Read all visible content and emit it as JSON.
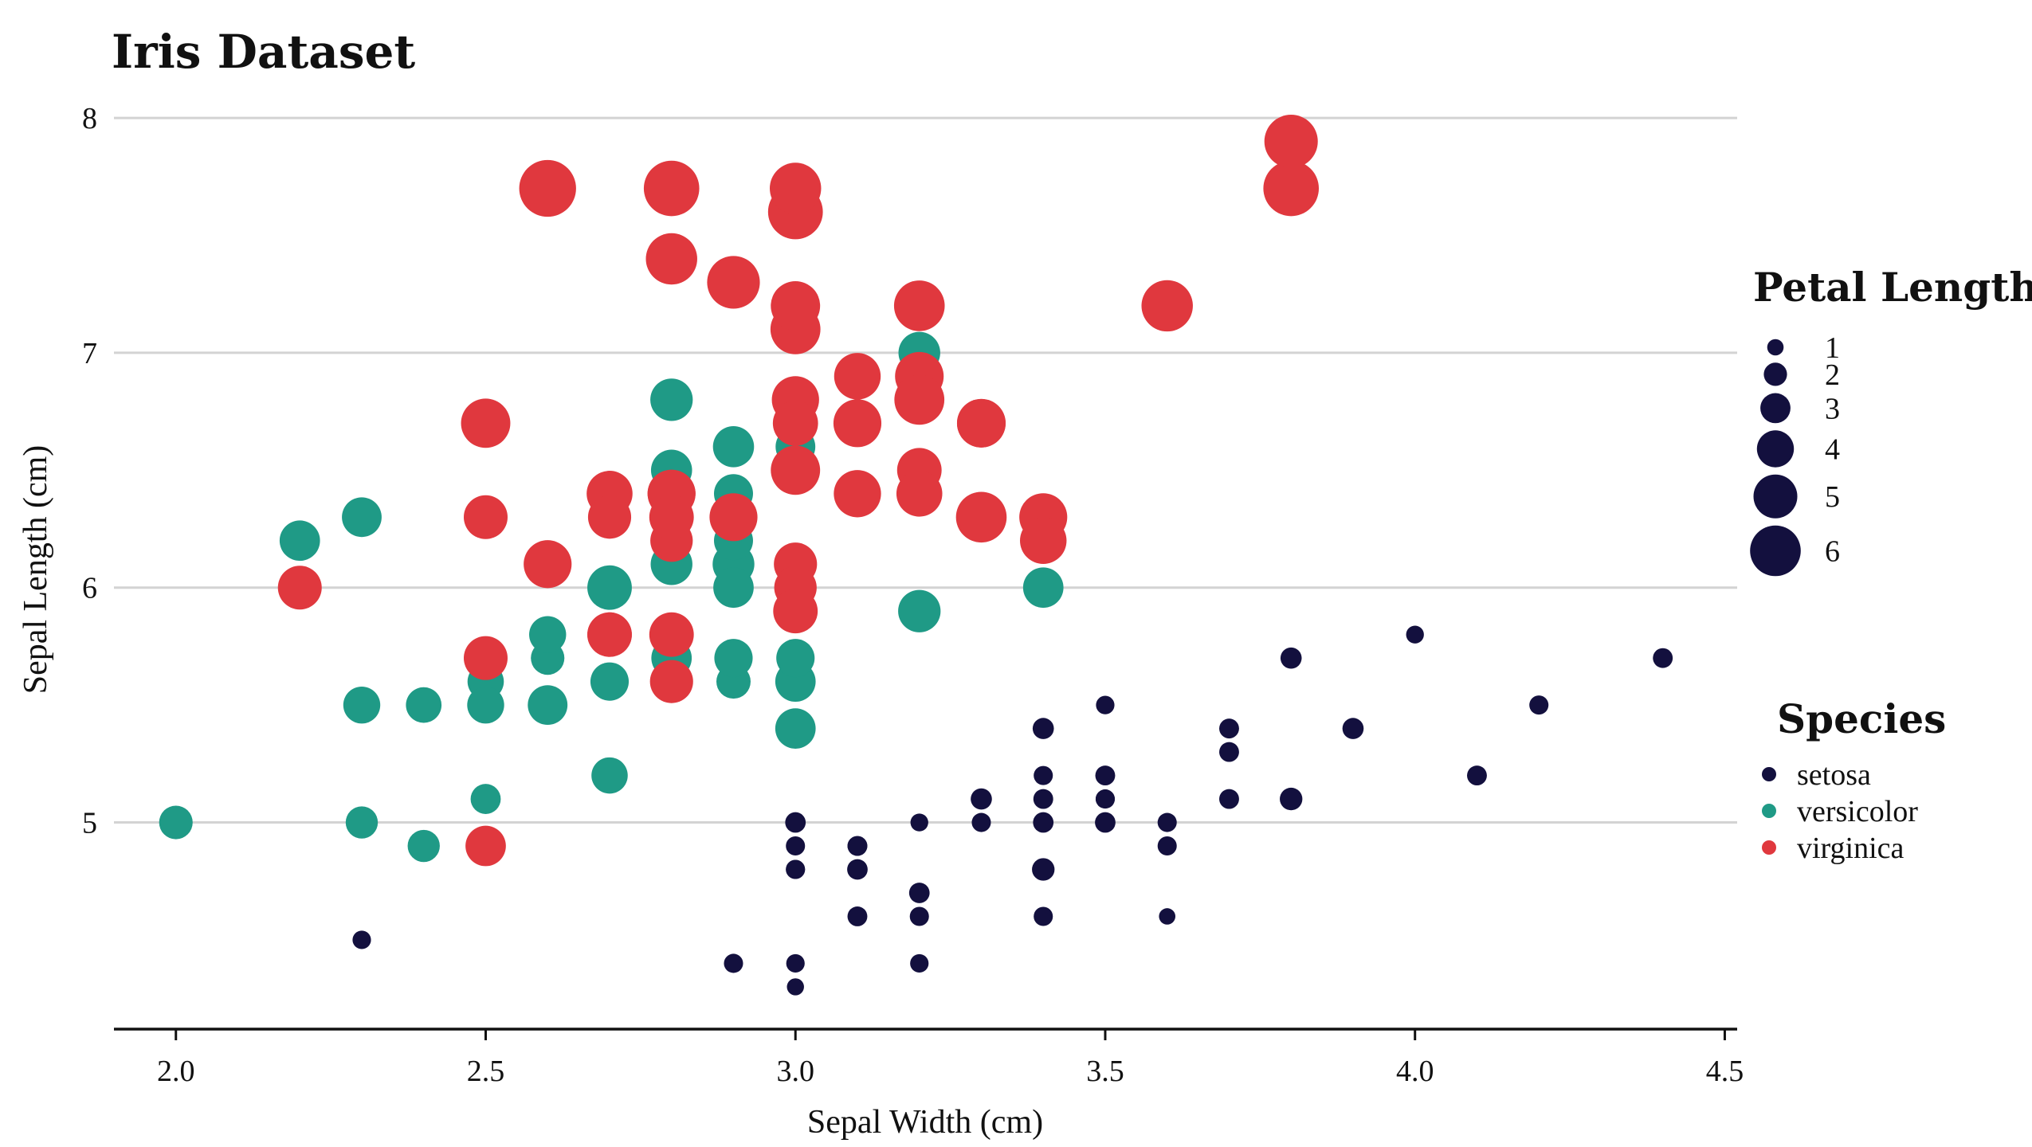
{
  "chart_data": {
    "type": "scatter",
    "title": "Iris Dataset",
    "xlabel": "Sepal Width (cm)",
    "ylabel": "Sepal Length (cm)",
    "xlim": [
      1.9,
      4.52
    ],
    "ylim": [
      4.12,
      8.18
    ],
    "xticks": [
      2.0,
      2.5,
      3.0,
      3.5,
      4.0,
      4.5
    ],
    "xtick_labels": [
      "2.0",
      "2.5",
      "3.0",
      "3.5",
      "4.0",
      "4.5"
    ],
    "yticks": [
      5,
      6,
      7,
      8
    ],
    "ytick_labels": [
      "5",
      "6",
      "7",
      "8"
    ],
    "grid": "horizontal",
    "size_encoding": "Petal Length",
    "size_legend": {
      "title": "Petal Length",
      "values": [
        1,
        2,
        3,
        4,
        5,
        6
      ],
      "labels": [
        "1",
        "2",
        "3",
        "4",
        "5",
        "6"
      ]
    },
    "legend": {
      "title": "Species",
      "placement": "right",
      "entries": [
        "setosa",
        "versicolor",
        "virginica"
      ]
    },
    "colors": {
      "setosa": "#13103e",
      "versicolor": "#1f9a86",
      "virginica": "#e0383e"
    },
    "series": [
      {
        "name": "setosa",
        "points": [
          {
            "x": 3.5,
            "y": 5.1,
            "p": 1.4
          },
          {
            "x": 3.0,
            "y": 4.9,
            "p": 1.4
          },
          {
            "x": 3.2,
            "y": 4.7,
            "p": 1.3
          },
          {
            "x": 3.1,
            "y": 4.6,
            "p": 1.5
          },
          {
            "x": 3.6,
            "y": 5.0,
            "p": 1.4
          },
          {
            "x": 3.9,
            "y": 5.4,
            "p": 1.7
          },
          {
            "x": 3.4,
            "y": 4.6,
            "p": 1.4
          },
          {
            "x": 3.4,
            "y": 5.0,
            "p": 1.5
          },
          {
            "x": 2.9,
            "y": 4.4,
            "p": 1.4
          },
          {
            "x": 3.1,
            "y": 4.9,
            "p": 1.5
          },
          {
            "x": 3.7,
            "y": 5.4,
            "p": 1.5
          },
          {
            "x": 3.4,
            "y": 4.8,
            "p": 1.6
          },
          {
            "x": 3.0,
            "y": 4.8,
            "p": 1.4
          },
          {
            "x": 3.0,
            "y": 4.3,
            "p": 1.1
          },
          {
            "x": 4.0,
            "y": 5.8,
            "p": 1.2
          },
          {
            "x": 4.4,
            "y": 5.7,
            "p": 1.5
          },
          {
            "x": 3.9,
            "y": 5.4,
            "p": 1.3
          },
          {
            "x": 3.5,
            "y": 5.1,
            "p": 1.4
          },
          {
            "x": 3.8,
            "y": 5.7,
            "p": 1.7
          },
          {
            "x": 3.8,
            "y": 5.1,
            "p": 1.5
          },
          {
            "x": 3.4,
            "y": 5.4,
            "p": 1.7
          },
          {
            "x": 3.7,
            "y": 5.1,
            "p": 1.5
          },
          {
            "x": 3.6,
            "y": 4.6,
            "p": 1.0
          },
          {
            "x": 3.3,
            "y": 5.1,
            "p": 1.7
          },
          {
            "x": 3.4,
            "y": 4.8,
            "p": 1.9
          },
          {
            "x": 3.0,
            "y": 5.0,
            "p": 1.6
          },
          {
            "x": 3.4,
            "y": 5.0,
            "p": 1.6
          },
          {
            "x": 3.5,
            "y": 5.2,
            "p": 1.5
          },
          {
            "x": 3.4,
            "y": 5.2,
            "p": 1.4
          },
          {
            "x": 3.2,
            "y": 4.7,
            "p": 1.6
          },
          {
            "x": 3.1,
            "y": 4.8,
            "p": 1.6
          },
          {
            "x": 3.4,
            "y": 5.4,
            "p": 1.5
          },
          {
            "x": 4.1,
            "y": 5.2,
            "p": 1.5
          },
          {
            "x": 4.2,
            "y": 5.5,
            "p": 1.4
          },
          {
            "x": 3.1,
            "y": 4.9,
            "p": 1.5
          },
          {
            "x": 3.2,
            "y": 5.0,
            "p": 1.2
          },
          {
            "x": 3.5,
            "y": 5.5,
            "p": 1.3
          },
          {
            "x": 3.6,
            "y": 4.9,
            "p": 1.4
          },
          {
            "x": 3.0,
            "y": 4.4,
            "p": 1.3
          },
          {
            "x": 3.4,
            "y": 5.1,
            "p": 1.5
          },
          {
            "x": 3.5,
            "y": 5.0,
            "p": 1.3
          },
          {
            "x": 2.3,
            "y": 4.5,
            "p": 1.3
          },
          {
            "x": 3.2,
            "y": 4.4,
            "p": 1.3
          },
          {
            "x": 3.5,
            "y": 5.0,
            "p": 1.6
          },
          {
            "x": 3.8,
            "y": 5.1,
            "p": 1.9
          },
          {
            "x": 3.0,
            "y": 4.8,
            "p": 1.4
          },
          {
            "x": 3.8,
            "y": 5.1,
            "p": 1.6
          },
          {
            "x": 3.2,
            "y": 4.6,
            "p": 1.4
          },
          {
            "x": 3.7,
            "y": 5.3,
            "p": 1.5
          },
          {
            "x": 3.3,
            "y": 5.0,
            "p": 1.4
          }
        ]
      },
      {
        "name": "versicolor",
        "points": [
          {
            "x": 3.2,
            "y": 7.0,
            "p": 4.7
          },
          {
            "x": 3.2,
            "y": 6.4,
            "p": 4.5
          },
          {
            "x": 3.1,
            "y": 6.9,
            "p": 4.9
          },
          {
            "x": 2.3,
            "y": 5.5,
            "p": 4.0
          },
          {
            "x": 2.8,
            "y": 6.5,
            "p": 4.6
          },
          {
            "x": 2.8,
            "y": 5.7,
            "p": 4.5
          },
          {
            "x": 3.3,
            "y": 6.3,
            "p": 4.7
          },
          {
            "x": 2.4,
            "y": 4.9,
            "p": 3.3
          },
          {
            "x": 2.9,
            "y": 6.6,
            "p": 4.6
          },
          {
            "x": 2.7,
            "y": 5.2,
            "p": 3.9
          },
          {
            "x": 2.0,
            "y": 5.0,
            "p": 3.5
          },
          {
            "x": 3.0,
            "y": 5.9,
            "p": 4.2
          },
          {
            "x": 2.2,
            "y": 6.0,
            "p": 4.0
          },
          {
            "x": 2.9,
            "y": 6.1,
            "p": 4.7
          },
          {
            "x": 2.9,
            "y": 5.6,
            "p": 3.6
          },
          {
            "x": 3.1,
            "y": 6.7,
            "p": 4.4
          },
          {
            "x": 3.0,
            "y": 5.6,
            "p": 4.5
          },
          {
            "x": 2.7,
            "y": 5.8,
            "p": 4.1
          },
          {
            "x": 2.2,
            "y": 6.2,
            "p": 4.5
          },
          {
            "x": 2.5,
            "y": 5.6,
            "p": 3.9
          },
          {
            "x": 3.2,
            "y": 5.9,
            "p": 4.8
          },
          {
            "x": 2.8,
            "y": 6.1,
            "p": 4.0
          },
          {
            "x": 2.5,
            "y": 6.3,
            "p": 4.9
          },
          {
            "x": 2.8,
            "y": 6.1,
            "p": 4.7
          },
          {
            "x": 2.9,
            "y": 6.4,
            "p": 4.3
          },
          {
            "x": 3.0,
            "y": 6.6,
            "p": 4.4
          },
          {
            "x": 2.8,
            "y": 6.8,
            "p": 4.8
          },
          {
            "x": 3.0,
            "y": 6.7,
            "p": 5.0
          },
          {
            "x": 2.9,
            "y": 6.0,
            "p": 4.5
          },
          {
            "x": 2.6,
            "y": 5.7,
            "p": 3.5
          },
          {
            "x": 2.4,
            "y": 5.5,
            "p": 3.8
          },
          {
            "x": 2.4,
            "y": 5.5,
            "p": 3.7
          },
          {
            "x": 2.7,
            "y": 5.8,
            "p": 3.9
          },
          {
            "x": 2.7,
            "y": 6.0,
            "p": 5.1
          },
          {
            "x": 3.0,
            "y": 5.4,
            "p": 4.5
          },
          {
            "x": 3.4,
            "y": 6.0,
            "p": 4.5
          },
          {
            "x": 3.1,
            "y": 6.7,
            "p": 4.7
          },
          {
            "x": 2.3,
            "y": 6.3,
            "p": 4.4
          },
          {
            "x": 3.0,
            "y": 5.6,
            "p": 4.1
          },
          {
            "x": 2.5,
            "y": 5.5,
            "p": 4.0
          },
          {
            "x": 2.6,
            "y": 5.5,
            "p": 4.4
          },
          {
            "x": 3.0,
            "y": 6.1,
            "p": 4.6
          },
          {
            "x": 2.6,
            "y": 5.8,
            "p": 4.0
          },
          {
            "x": 2.3,
            "y": 5.0,
            "p": 3.3
          },
          {
            "x": 2.7,
            "y": 5.6,
            "p": 4.2
          },
          {
            "x": 3.0,
            "y": 5.7,
            "p": 4.2
          },
          {
            "x": 2.9,
            "y": 5.7,
            "p": 4.2
          },
          {
            "x": 2.9,
            "y": 6.2,
            "p": 4.3
          },
          {
            "x": 2.5,
            "y": 5.1,
            "p": 3.0
          },
          {
            "x": 2.8,
            "y": 5.7,
            "p": 4.1
          }
        ]
      },
      {
        "name": "virginica",
        "points": [
          {
            "x": 3.3,
            "y": 6.3,
            "p": 6.0
          },
          {
            "x": 2.7,
            "y": 5.8,
            "p": 5.1
          },
          {
            "x": 3.0,
            "y": 7.1,
            "p": 5.9
          },
          {
            "x": 2.9,
            "y": 6.3,
            "p": 5.6
          },
          {
            "x": 3.0,
            "y": 6.5,
            "p": 5.8
          },
          {
            "x": 3.0,
            "y": 7.6,
            "p": 6.6
          },
          {
            "x": 2.5,
            "y": 4.9,
            "p": 4.5
          },
          {
            "x": 2.9,
            "y": 7.3,
            "p": 6.3
          },
          {
            "x": 2.5,
            "y": 6.7,
            "p": 5.8
          },
          {
            "x": 3.6,
            "y": 7.2,
            "p": 6.1
          },
          {
            "x": 3.2,
            "y": 6.5,
            "p": 5.1
          },
          {
            "x": 2.7,
            "y": 6.4,
            "p": 5.3
          },
          {
            "x": 3.0,
            "y": 6.8,
            "p": 5.5
          },
          {
            "x": 2.5,
            "y": 5.7,
            "p": 5.0
          },
          {
            "x": 2.8,
            "y": 5.8,
            "p": 5.1
          },
          {
            "x": 3.2,
            "y": 6.4,
            "p": 5.3
          },
          {
            "x": 3.0,
            "y": 6.5,
            "p": 5.5
          },
          {
            "x": 3.8,
            "y": 7.7,
            "p": 6.7
          },
          {
            "x": 2.6,
            "y": 7.7,
            "p": 6.9
          },
          {
            "x": 2.2,
            "y": 6.0,
            "p": 5.0
          },
          {
            "x": 3.2,
            "y": 6.9,
            "p": 5.7
          },
          {
            "x": 2.8,
            "y": 5.6,
            "p": 4.9
          },
          {
            "x": 2.8,
            "y": 7.7,
            "p": 6.7
          },
          {
            "x": 2.7,
            "y": 6.3,
            "p": 4.9
          },
          {
            "x": 3.3,
            "y": 6.7,
            "p": 5.7
          },
          {
            "x": 3.2,
            "y": 7.2,
            "p": 6.0
          },
          {
            "x": 2.8,
            "y": 6.2,
            "p": 4.8
          },
          {
            "x": 3.0,
            "y": 6.1,
            "p": 4.9
          },
          {
            "x": 2.8,
            "y": 6.4,
            "p": 5.6
          },
          {
            "x": 3.0,
            "y": 7.2,
            "p": 5.8
          },
          {
            "x": 2.8,
            "y": 7.4,
            "p": 6.1
          },
          {
            "x": 3.8,
            "y": 7.9,
            "p": 6.4
          },
          {
            "x": 2.8,
            "y": 6.4,
            "p": 5.6
          },
          {
            "x": 2.8,
            "y": 6.3,
            "p": 5.1
          },
          {
            "x": 2.6,
            "y": 6.1,
            "p": 5.6
          },
          {
            "x": 3.0,
            "y": 7.7,
            "p": 6.1
          },
          {
            "x": 3.4,
            "y": 6.3,
            "p": 5.6
          },
          {
            "x": 3.1,
            "y": 6.4,
            "p": 5.5
          },
          {
            "x": 3.0,
            "y": 6.0,
            "p": 4.8
          },
          {
            "x": 3.1,
            "y": 6.9,
            "p": 5.4
          },
          {
            "x": 3.1,
            "y": 6.7,
            "p": 5.6
          },
          {
            "x": 3.1,
            "y": 6.9,
            "p": 5.1
          },
          {
            "x": 2.7,
            "y": 5.8,
            "p": 5.1
          },
          {
            "x": 3.2,
            "y": 6.8,
            "p": 5.9
          },
          {
            "x": 3.3,
            "y": 6.7,
            "p": 5.7
          },
          {
            "x": 3.0,
            "y": 6.7,
            "p": 5.2
          },
          {
            "x": 2.5,
            "y": 6.3,
            "p": 5.0
          },
          {
            "x": 3.0,
            "y": 6.5,
            "p": 5.2
          },
          {
            "x": 3.4,
            "y": 6.2,
            "p": 5.4
          },
          {
            "x": 3.0,
            "y": 5.9,
            "p": 5.1
          }
        ]
      }
    ]
  }
}
